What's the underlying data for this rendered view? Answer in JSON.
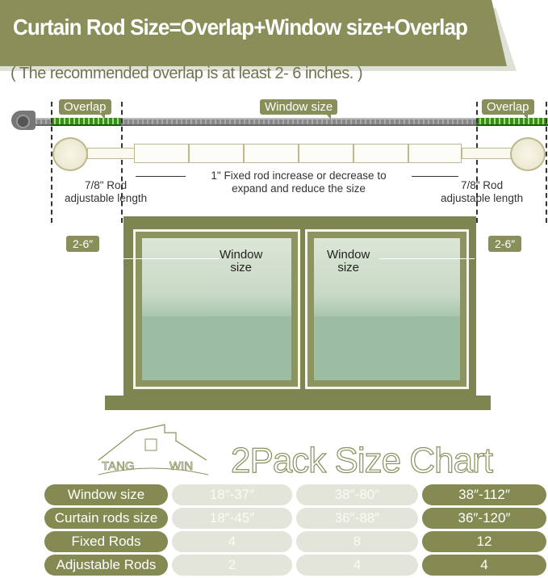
{
  "header": {
    "title": "Curtain Rod Size=Overlap+Window size+Overlap",
    "subtitle": "( The recommended overlap is at least 2- 6 inches. )"
  },
  "measure": {
    "overlap_left": "Overlap",
    "window_size": "Window size",
    "overlap_right": "Overlap"
  },
  "rod": {
    "left_note_1": "7/8\"  Rod",
    "left_note_2": "adjustable length",
    "center_note_1": "1\" Fixed rod  increase or decrease to",
    "center_note_2": "expand and reduce the size",
    "right_note_1": "7/8\"  Rod",
    "right_note_2": "adjustable length"
  },
  "window": {
    "left_overlap": "2-6″",
    "right_overlap": "2-6″",
    "left_pane_1": "Window",
    "left_pane_2": "size",
    "right_pane_1": "Window",
    "right_pane_2": "size"
  },
  "logo": {
    "text": "TANG WIN"
  },
  "chart": {
    "title": "2Pack Size Chart",
    "rows": [
      {
        "label": "Window size",
        "values": [
          "18″-37″",
          "38″-80″",
          "38″-112″"
        ]
      },
      {
        "label": "Curtain rods size",
        "values": [
          "18″-45″",
          "36″-88″",
          "36″-120″"
        ]
      },
      {
        "label": "Fixed Rods",
        "values": [
          "4",
          "8",
          "12"
        ]
      },
      {
        "label": "Adjustable Rods",
        "values": [
          "2",
          "4",
          "4"
        ]
      }
    ]
  },
  "colors": {
    "olive": "#8a8f5a",
    "light": "#e3e4da",
    "tape_green": "#3b8a2a"
  }
}
